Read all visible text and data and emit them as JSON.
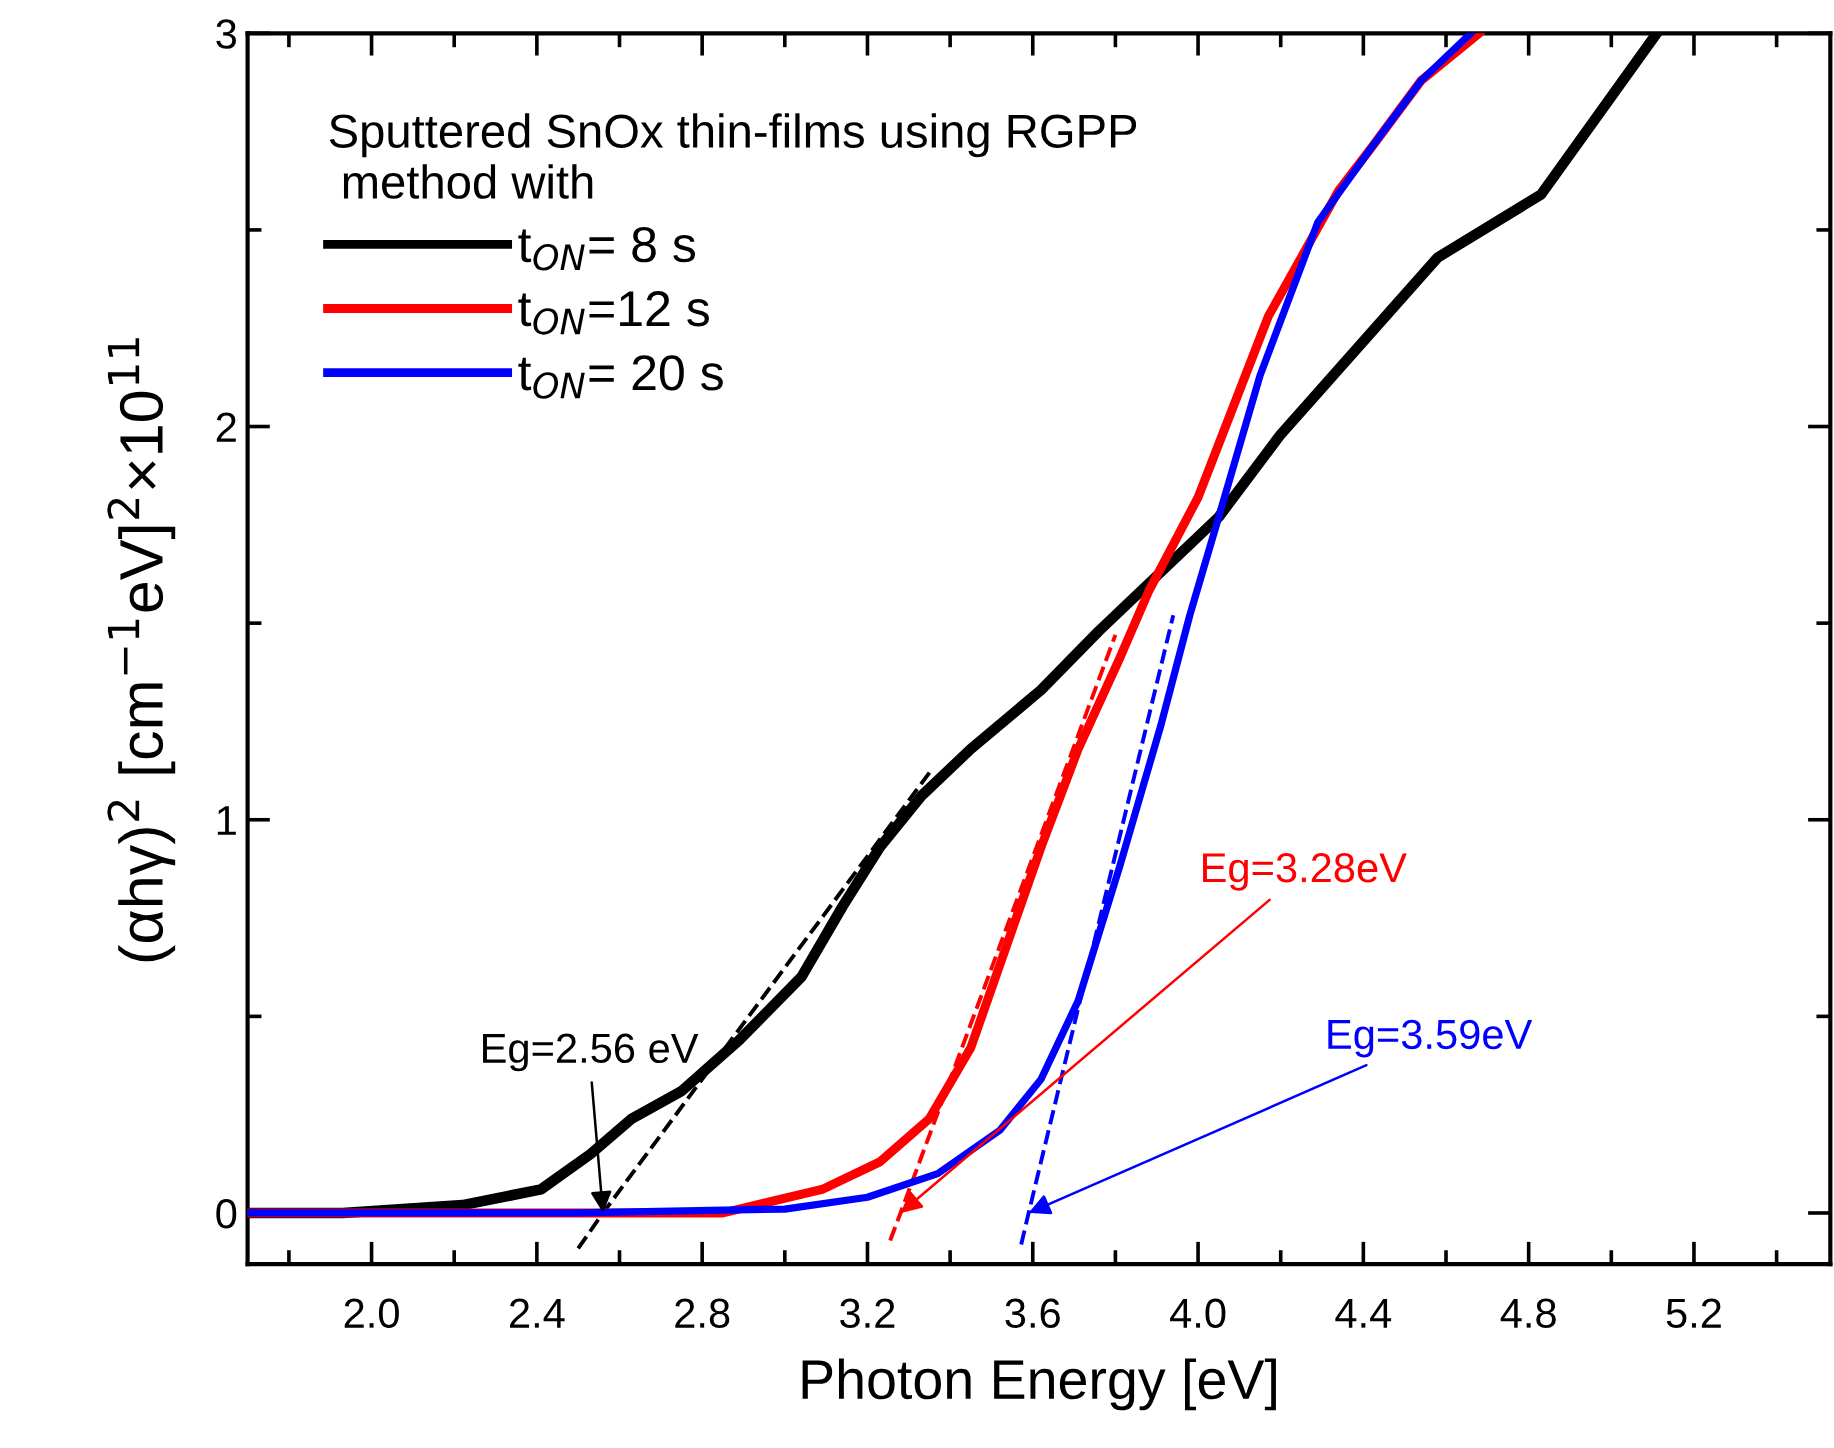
{
  "chart_data": {
    "type": "line",
    "xlabel": "Photon Energy [eV]",
    "ylabel": "(αhγ)$^{2}$ [cm$^{−1}$eV]$^{2}$×10$^{11}$",
    "legend_title": "Sputtered SnOx thin-films using RGPP\n method with",
    "legend": "top left",
    "grid": false,
    "marker": "none",
    "xlim": [
      1.7,
      5.53
    ],
    "ylim": [
      -0.13,
      3.0
    ],
    "xticks": [
      {
        "value": 2.0,
        "label": "2.0"
      },
      {
        "value": 2.4,
        "label": "2.4"
      },
      {
        "value": 2.8,
        "label": "2.8"
      },
      {
        "value": 3.2,
        "label": "3.2"
      },
      {
        "value": 3.6,
        "label": "3.6"
      },
      {
        "value": 4.0,
        "label": "4.0"
      },
      {
        "value": 4.4,
        "label": "4.4"
      },
      {
        "value": 4.8,
        "label": "4.8"
      },
      {
        "value": 5.2,
        "label": "5.2"
      }
    ],
    "yticks": [
      0,
      1,
      2,
      3
    ],
    "series": [
      {
        "name": "t$_{ON}$= 8 s",
        "color": "#000000",
        "line_style": "solid",
        "x": [
          1.7,
          1.93,
          2.22,
          2.41,
          2.53,
          2.63,
          2.75,
          2.89,
          3.04,
          3.14,
          3.23,
          3.33,
          3.45,
          3.62,
          3.76,
          4.05,
          4.2,
          4.58,
          4.83,
          5.11
        ],
        "values": [
          0.0,
          0.0,
          0.02,
          0.06,
          0.15,
          0.24,
          0.31,
          0.44,
          0.6,
          0.78,
          0.93,
          1.06,
          1.18,
          1.33,
          1.48,
          1.77,
          1.98,
          2.43,
          2.59,
          3.0
        ]
      },
      {
        "name": "t$_{ON}$=12 s",
        "color": "#ff0000",
        "line_style": "solid",
        "x": [
          1.7,
          2.5,
          2.85,
          3.09,
          3.23,
          3.35,
          3.45,
          3.55,
          3.62,
          3.71,
          3.81,
          3.88,
          4.0,
          4.17,
          4.34,
          4.42,
          4.54,
          4.68
        ],
        "values": [
          0.0,
          0.0,
          0.0,
          0.06,
          0.13,
          0.24,
          0.42,
          0.72,
          0.93,
          1.18,
          1.41,
          1.58,
          1.82,
          2.28,
          2.6,
          2.71,
          2.88,
          3.0
        ]
      },
      {
        "name": "t$_{ON}$= 20 s",
        "color": "#0000ff",
        "line_style": "solid",
        "x": [
          1.7,
          2.5,
          3.0,
          3.2,
          3.37,
          3.52,
          3.62,
          3.71,
          3.81,
          3.91,
          3.98,
          4.05,
          4.15,
          4.29,
          4.42,
          4.54,
          4.66
        ],
        "values": [
          0.0,
          0.0,
          0.01,
          0.04,
          0.1,
          0.21,
          0.34,
          0.54,
          0.88,
          1.24,
          1.52,
          1.77,
          2.13,
          2.52,
          2.71,
          2.88,
          3.0
        ]
      },
      {
        "color": "#000000",
        "line_style": "dashed",
        "x": [
          2.5,
          2.56,
          3.35
        ],
        "values": [
          -0.09,
          0,
          1.12
        ]
      },
      {
        "color": "#ff0000",
        "line_style": "dashed",
        "x": [
          3.255,
          3.28,
          3.8
        ],
        "values": [
          -0.07,
          0,
          1.47
        ]
      },
      {
        "color": "#0000ff",
        "line_style": "dashed",
        "x": [
          3.572,
          3.59,
          3.94
        ],
        "values": [
          -0.08,
          0,
          1.52
        ]
      }
    ],
    "annotations": [
      {
        "text": "Eg=2.56 eV",
        "x": 2.56,
        "y": 0
      },
      {
        "text": "Eg=3.28eV",
        "x": 3.28,
        "y": 0
      },
      {
        "text": "Eg=3.59eV",
        "x": 3.59,
        "y": 0
      }
    ]
  }
}
